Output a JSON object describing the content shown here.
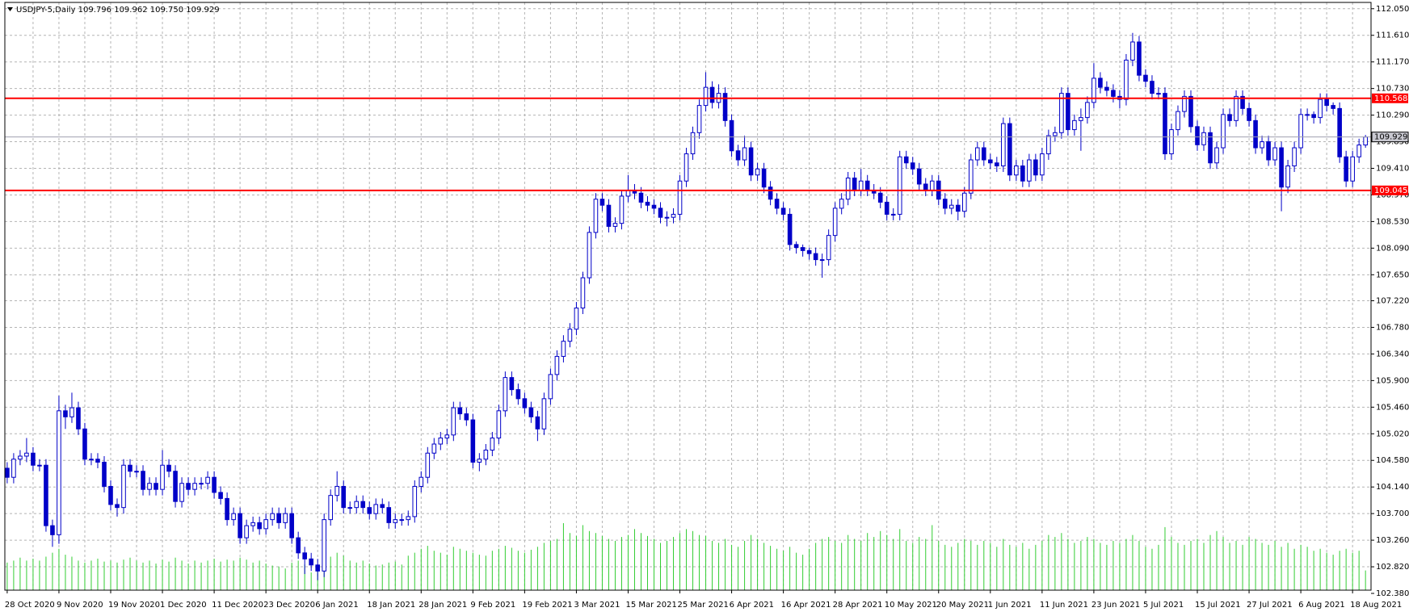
{
  "chart_data": {
    "type": "candlestick",
    "title": "USDJPY-5,Daily  109.796 109.962 109.750 109.929",
    "candle_color": "#0000c8",
    "bull_fill": "#ffffff",
    "volume_color": "#32cd32",
    "grid": true,
    "ylim": [
      102.38,
      112.154
    ],
    "yticks": [
      {
        "value": 112.05,
        "label": "112.050"
      },
      {
        "value": 111.61,
        "label": "111.610"
      },
      {
        "value": 111.17,
        "label": "111.170"
      },
      {
        "value": 110.73,
        "label": "110.730"
      },
      {
        "value": 110.29,
        "label": "110.290"
      },
      {
        "value": 109.85,
        "label": "109.850"
      },
      {
        "value": 109.41,
        "label": "109.410"
      },
      {
        "value": 108.97,
        "label": "108.970"
      },
      {
        "value": 108.53,
        "label": "108.530"
      },
      {
        "value": 108.09,
        "label": "108.090"
      },
      {
        "value": 107.65,
        "label": "107.650"
      },
      {
        "value": 107.22,
        "label": "107.220"
      },
      {
        "value": 106.78,
        "label": "106.780"
      },
      {
        "value": 106.34,
        "label": "106.340"
      },
      {
        "value": 105.9,
        "label": "105.900"
      },
      {
        "value": 105.46,
        "label": "105.460"
      },
      {
        "value": 105.02,
        "label": "105.020"
      },
      {
        "value": 104.58,
        "label": "104.580"
      },
      {
        "value": 104.14,
        "label": "104.140"
      },
      {
        "value": 103.7,
        "label": "103.700"
      },
      {
        "value": 103.26,
        "label": "103.260"
      },
      {
        "value": 102.82,
        "label": "102.820"
      },
      {
        "value": 102.38,
        "label": "102.380"
      }
    ],
    "hlines": [
      {
        "value": 110.568,
        "color": "#ff0000"
      },
      {
        "value": 109.045,
        "color": "#ff0000"
      }
    ],
    "categories": [
      "28 Oct 2020",
      null,
      null,
      null,
      null,
      null,
      null,
      null,
      "9 Nov 2020",
      null,
      null,
      null,
      null,
      null,
      null,
      null,
      "19 Nov 2020",
      null,
      null,
      null,
      null,
      null,
      null,
      null,
      "1 Dec 2020",
      null,
      null,
      null,
      null,
      null,
      null,
      null,
      "11 Dec 2020",
      null,
      null,
      null,
      null,
      null,
      null,
      null,
      "23 Dec 2020",
      null,
      null,
      null,
      null,
      null,
      null,
      null,
      "6 Jan 2021",
      null,
      null,
      null,
      null,
      null,
      null,
      null,
      "18 Jan 2021",
      null,
      null,
      null,
      null,
      null,
      null,
      null,
      "28 Jan 2021",
      null,
      null,
      null,
      null,
      null,
      null,
      null,
      "9 Feb 2021",
      null,
      null,
      null,
      null,
      null,
      null,
      null,
      "19 Feb 2021",
      null,
      null,
      null,
      null,
      null,
      null,
      null,
      "3 Mar 2021",
      null,
      null,
      null,
      null,
      null,
      null,
      null,
      "15 Mar 2021",
      null,
      null,
      null,
      null,
      null,
      null,
      null,
      "25 Mar 2021",
      null,
      null,
      null,
      null,
      null,
      null,
      null,
      "6 Apr 2021",
      null,
      null,
      null,
      null,
      null,
      null,
      null,
      "16 Apr 2021",
      null,
      null,
      null,
      null,
      null,
      null,
      null,
      "28 Apr 2021",
      null,
      null,
      null,
      null,
      null,
      null,
      null,
      "10 May 2021",
      null,
      null,
      null,
      null,
      null,
      null,
      null,
      "20 May 2021",
      null,
      null,
      null,
      null,
      null,
      null,
      null,
      "1 Jun 2021",
      null,
      null,
      null,
      null,
      null,
      null,
      null,
      "11 Jun 2021",
      null,
      null,
      null,
      null,
      null,
      null,
      null,
      "23 Jun 2021",
      null,
      null,
      null,
      null,
      null,
      null,
      null,
      "5 Jul 2021",
      null,
      null,
      null,
      null,
      null,
      null,
      null,
      "15 Jul 2021",
      null,
      null,
      null,
      null,
      null,
      null,
      null,
      "27 Jul 2021",
      null,
      null,
      null,
      null,
      null,
      null,
      null,
      "6 Aug 2021",
      null,
      null,
      null,
      null,
      null,
      null,
      null,
      "18 Aug 2021",
      null,
      null
    ],
    "open": [
      104.45,
      104.3,
      104.6,
      104.65,
      104.7,
      104.5,
      104.5,
      103.5,
      103.35,
      105.4,
      105.3,
      105.45,
      105.1,
      104.6,
      104.6,
      104.55,
      104.15,
      103.85,
      103.8,
      104.5,
      104.4,
      104.4,
      104.1,
      104.2,
      104.1,
      104.5,
      104.4,
      103.9,
      104.2,
      104.1,
      104.2,
      104.2,
      104.3,
      104.05,
      103.95,
      103.6,
      103.7,
      103.3,
      103.5,
      103.55,
      103.45,
      103.6,
      103.7,
      103.55,
      103.7,
      103.3,
      103.05,
      102.95,
      102.85,
      102.75,
      103.6,
      104.0,
      104.15,
      103.8,
      103.8,
      103.9,
      103.8,
      103.7,
      103.85,
      103.8,
      103.55,
      103.6,
      103.6,
      103.65,
      104.15,
      104.3,
      104.7,
      104.85,
      104.95,
      105.0,
      105.45,
      105.35,
      105.25,
      104.55,
      104.6,
      104.75,
      104.95,
      105.4,
      105.95,
      105.75,
      105.6,
      105.45,
      105.3,
      105.1,
      105.6,
      106.0,
      106.3,
      106.55,
      106.75,
      107.1,
      107.6,
      108.35,
      108.9,
      108.8,
      108.45,
      108.5,
      108.95,
      109.05,
      109.0,
      108.85,
      108.8,
      108.75,
      108.6,
      108.6,
      108.65,
      109.2,
      109.65,
      110.0,
      110.45,
      110.75,
      110.5,
      110.65,
      110.2,
      109.7,
      109.55,
      109.75,
      109.3,
      109.4,
      109.1,
      108.9,
      108.75,
      108.65,
      108.15,
      108.1,
      108.05,
      108.0,
      107.9,
      107.9,
      108.3,
      108.75,
      108.9,
      109.25,
      109.05,
      109.2,
      109.05,
      109.0,
      108.85,
      108.65,
      108.65,
      109.6,
      109.5,
      109.4,
      109.15,
      109.05,
      109.2,
      108.9,
      108.75,
      108.8,
      108.7,
      109.0,
      109.55,
      109.75,
      109.55,
      109.5,
      109.45,
      110.15,
      109.3,
      109.45,
      109.2,
      109.55,
      109.3,
      109.65,
      109.95,
      110.0,
      110.65,
      110.05,
      110.2,
      110.25,
      110.5,
      110.9,
      110.75,
      110.7,
      110.6,
      110.55,
      111.2,
      111.5,
      110.95,
      110.85,
      110.65,
      110.65,
      109.65,
      110.05,
      110.35,
      110.6,
      110.1,
      109.8,
      110.0,
      109.5,
      109.75,
      110.3,
      110.2,
      110.6,
      110.4,
      110.2,
      109.75,
      109.85,
      109.55,
      109.75,
      109.1,
      109.45,
      109.75,
      110.3,
      110.3,
      110.25,
      110.55,
      110.45,
      110.4,
      109.6,
      109.2,
      109.6,
      109.796
    ],
    "high": [
      104.55,
      104.7,
      104.75,
      104.95,
      104.8,
      104.6,
      104.6,
      103.6,
      105.65,
      105.5,
      105.7,
      105.55,
      105.2,
      104.7,
      104.7,
      104.65,
      104.25,
      103.95,
      104.6,
      104.6,
      104.5,
      104.5,
      104.3,
      104.3,
      104.75,
      104.6,
      104.5,
      104.3,
      104.3,
      104.3,
      104.3,
      104.4,
      104.4,
      104.15,
      104.05,
      103.8,
      103.8,
      103.6,
      103.65,
      103.65,
      103.7,
      103.8,
      103.8,
      103.8,
      103.8,
      103.4,
      103.15,
      103.05,
      102.95,
      103.7,
      104.1,
      104.4,
      104.25,
      103.9,
      104.0,
      104.0,
      103.9,
      103.95,
      103.95,
      103.9,
      103.7,
      103.7,
      103.75,
      104.25,
      104.4,
      104.8,
      104.95,
      105.05,
      105.1,
      105.55,
      105.55,
      105.45,
      105.35,
      104.7,
      104.85,
      105.05,
      105.5,
      106.05,
      106.05,
      105.85,
      105.7,
      105.55,
      105.4,
      105.7,
      106.1,
      106.4,
      106.65,
      106.85,
      107.2,
      107.7,
      108.45,
      109.0,
      109.0,
      108.9,
      108.6,
      109.05,
      109.3,
      109.15,
      109.1,
      108.95,
      108.9,
      108.85,
      108.7,
      108.75,
      109.3,
      109.75,
      110.1,
      110.55,
      111.0,
      110.85,
      110.8,
      110.75,
      110.3,
      109.8,
      109.95,
      109.85,
      109.5,
      109.5,
      109.2,
      109.0,
      108.85,
      108.75,
      108.2,
      108.15,
      108.1,
      108.1,
      108.0,
      108.4,
      108.85,
      109.0,
      109.35,
      109.35,
      109.4,
      109.3,
      109.15,
      109.1,
      108.95,
      108.75,
      109.7,
      109.7,
      109.6,
      109.5,
      109.25,
      109.3,
      109.3,
      109.0,
      108.9,
      108.9,
      109.1,
      109.65,
      109.85,
      109.85,
      109.65,
      109.6,
      110.25,
      110.25,
      109.55,
      109.55,
      109.65,
      109.65,
      109.75,
      110.05,
      110.1,
      110.75,
      110.75,
      110.3,
      110.4,
      110.6,
      111.15,
      111.0,
      110.85,
      110.8,
      110.7,
      111.3,
      111.65,
      111.6,
      111.05,
      110.95,
      110.75,
      110.75,
      110.15,
      110.45,
      110.7,
      110.7,
      110.2,
      110.1,
      110.1,
      109.85,
      110.4,
      110.4,
      110.7,
      110.7,
      110.5,
      110.3,
      109.95,
      109.95,
      109.85,
      109.85,
      109.55,
      109.85,
      110.4,
      110.4,
      110.35,
      110.65,
      110.65,
      110.5,
      110.5,
      109.7,
      109.7,
      109.9,
      109.962
    ],
    "low": [
      104.2,
      104.2,
      104.5,
      104.55,
      104.4,
      104.4,
      103.4,
      103.15,
      103.2,
      105.1,
      105.2,
      105.0,
      104.5,
      104.5,
      104.45,
      104.05,
      103.75,
      103.65,
      103.7,
      104.3,
      104.3,
      104.0,
      104.0,
      104.0,
      104.0,
      104.3,
      103.8,
      103.8,
      104.0,
      104.0,
      104.1,
      104.1,
      103.95,
      103.85,
      103.5,
      103.5,
      103.2,
      103.2,
      103.4,
      103.35,
      103.35,
      103.5,
      103.45,
      103.45,
      103.2,
      102.95,
      102.7,
      102.75,
      102.6,
      102.65,
      103.5,
      103.9,
      103.7,
      103.7,
      103.7,
      103.7,
      103.6,
      103.6,
      103.7,
      103.45,
      103.45,
      103.5,
      103.5,
      103.55,
      104.05,
      104.2,
      104.6,
      104.75,
      104.85,
      104.9,
      105.25,
      105.15,
      104.45,
      104.4,
      104.5,
      104.65,
      104.85,
      105.3,
      105.65,
      105.5,
      105.35,
      105.2,
      104.9,
      105.0,
      105.5,
      105.9,
      106.2,
      106.45,
      106.65,
      107.0,
      107.5,
      108.25,
      108.7,
      108.35,
      108.35,
      108.4,
      108.85,
      108.9,
      108.75,
      108.7,
      108.65,
      108.5,
      108.45,
      108.5,
      108.55,
      109.1,
      109.55,
      109.9,
      110.35,
      110.4,
      110.4,
      110.1,
      109.6,
      109.45,
      109.45,
      109.2,
      109.2,
      109.0,
      108.8,
      108.65,
      108.55,
      108.05,
      108.0,
      107.95,
      107.9,
      107.8,
      107.6,
      107.8,
      108.2,
      108.65,
      108.8,
      108.95,
      108.95,
      108.95,
      108.9,
      108.75,
      108.55,
      108.55,
      108.55,
      109.4,
      109.3,
      109.05,
      108.95,
      108.95,
      108.8,
      108.65,
      108.65,
      108.55,
      108.6,
      108.9,
      109.45,
      109.45,
      109.4,
      109.35,
      109.35,
      109.2,
      109.2,
      109.1,
      109.1,
      109.2,
      109.2,
      109.55,
      109.85,
      109.9,
      109.95,
      109.95,
      109.7,
      110.15,
      110.4,
      110.65,
      110.6,
      110.5,
      110.4,
      110.45,
      111.1,
      110.85,
      110.75,
      110.55,
      110.55,
      109.55,
      109.55,
      109.95,
      110.25,
      110.0,
      109.7,
      109.7,
      109.4,
      109.4,
      109.65,
      110.1,
      110.1,
      110.3,
      110.1,
      109.65,
      109.65,
      109.45,
      109.45,
      108.7,
      109.0,
      109.35,
      109.65,
      110.2,
      110.15,
      110.15,
      110.35,
      110.3,
      109.5,
      109.1,
      109.1,
      109.5,
      109.75
    ],
    "close": [
      104.3,
      104.6,
      104.65,
      104.7,
      104.5,
      104.5,
      103.5,
      103.35,
      105.4,
      105.3,
      105.45,
      105.1,
      104.6,
      104.6,
      104.55,
      104.15,
      103.85,
      103.8,
      104.5,
      104.4,
      104.4,
      104.1,
      104.2,
      104.1,
      104.5,
      104.4,
      103.9,
      104.2,
      104.1,
      104.2,
      104.2,
      104.3,
      104.05,
      103.95,
      103.6,
      103.7,
      103.3,
      103.5,
      103.55,
      103.45,
      103.6,
      103.7,
      103.55,
      103.7,
      103.3,
      103.05,
      102.95,
      102.85,
      102.75,
      103.6,
      104.0,
      104.15,
      103.8,
      103.8,
      103.9,
      103.8,
      103.7,
      103.85,
      103.8,
      103.55,
      103.6,
      103.6,
      103.65,
      104.15,
      104.3,
      104.7,
      104.85,
      104.95,
      105.0,
      105.45,
      105.35,
      105.25,
      104.55,
      104.6,
      104.75,
      104.95,
      105.4,
      105.95,
      105.75,
      105.6,
      105.45,
      105.3,
      105.1,
      105.6,
      106.0,
      106.3,
      106.55,
      106.75,
      107.1,
      107.6,
      108.35,
      108.9,
      108.8,
      108.45,
      108.5,
      108.95,
      109.05,
      109.0,
      108.85,
      108.8,
      108.75,
      108.6,
      108.6,
      108.65,
      109.2,
      109.65,
      110.0,
      110.45,
      110.75,
      110.5,
      110.65,
      110.2,
      109.7,
      109.55,
      109.75,
      109.3,
      109.4,
      109.1,
      108.9,
      108.75,
      108.65,
      108.15,
      108.1,
      108.05,
      108.0,
      107.9,
      107.9,
      108.3,
      108.75,
      108.9,
      109.25,
      109.05,
      109.2,
      109.05,
      109.0,
      108.85,
      108.65,
      108.65,
      109.6,
      109.5,
      109.4,
      109.15,
      109.05,
      109.2,
      108.9,
      108.75,
      108.8,
      108.7,
      109.0,
      109.55,
      109.75,
      109.55,
      109.5,
      109.45,
      110.15,
      109.3,
      109.45,
      109.2,
      109.55,
      109.3,
      109.65,
      109.95,
      110.0,
      110.65,
      110.05,
      110.2,
      110.25,
      110.5,
      110.9,
      110.75,
      110.7,
      110.6,
      110.55,
      111.2,
      111.5,
      110.95,
      110.85,
      110.65,
      110.65,
      109.65,
      110.05,
      110.35,
      110.6,
      110.1,
      109.8,
      110.0,
      109.5,
      109.75,
      110.3,
      110.2,
      110.6,
      110.4,
      110.2,
      109.75,
      109.85,
      109.55,
      109.75,
      109.1,
      109.45,
      109.75,
      110.3,
      110.3,
      110.25,
      110.55,
      110.45,
      110.4,
      109.6,
      109.2,
      109.6,
      109.796,
      109.929
    ],
    "volume": [
      28,
      30,
      33,
      30,
      32,
      30,
      34,
      38,
      42,
      36,
      34,
      30,
      28,
      30,
      32,
      29,
      30,
      28,
      31,
      33,
      30,
      28,
      30,
      27,
      31,
      29,
      33,
      30,
      27,
      30,
      28,
      30,
      32,
      29,
      31,
      30,
      33,
      31,
      28,
      30,
      27,
      25,
      24,
      22,
      28,
      30,
      26,
      18,
      20,
      30,
      34,
      38,
      35,
      30,
      28,
      30,
      27,
      25,
      26,
      28,
      29,
      26,
      35,
      38,
      42,
      45,
      40,
      38,
      36,
      44,
      42,
      40,
      38,
      36,
      35,
      40,
      42,
      45,
      43,
      40,
      38,
      41,
      44,
      48,
      50,
      52,
      68,
      58,
      55,
      66,
      60,
      58,
      55,
      52,
      50,
      54,
      56,
      62,
      58,
      55,
      52,
      48,
      50,
      54,
      58,
      62,
      60,
      56,
      55,
      50,
      48,
      52,
      46,
      44,
      50,
      56,
      52,
      48,
      45,
      42,
      40,
      44,
      38,
      36,
      42,
      48,
      52,
      54,
      50,
      48,
      56,
      52,
      50,
      58,
      54,
      60,
      56,
      52,
      62,
      50,
      48,
      54,
      52,
      66,
      50,
      46,
      44,
      48,
      52,
      50,
      46,
      50,
      48,
      44,
      52,
      46,
      44,
      48,
      42,
      46,
      50,
      56,
      54,
      58,
      52,
      48,
      50,
      54,
      52,
      48,
      46,
      50,
      48,
      52,
      56,
      50,
      44,
      42,
      46,
      64,
      54,
      48,
      46,
      50,
      52,
      48,
      56,
      60,
      54,
      48,
      50,
      46,
      54,
      52,
      48,
      46,
      50,
      44,
      48,
      42,
      46,
      44,
      40,
      42,
      38,
      36,
      40,
      42,
      38,
      40,
      20
    ]
  }
}
